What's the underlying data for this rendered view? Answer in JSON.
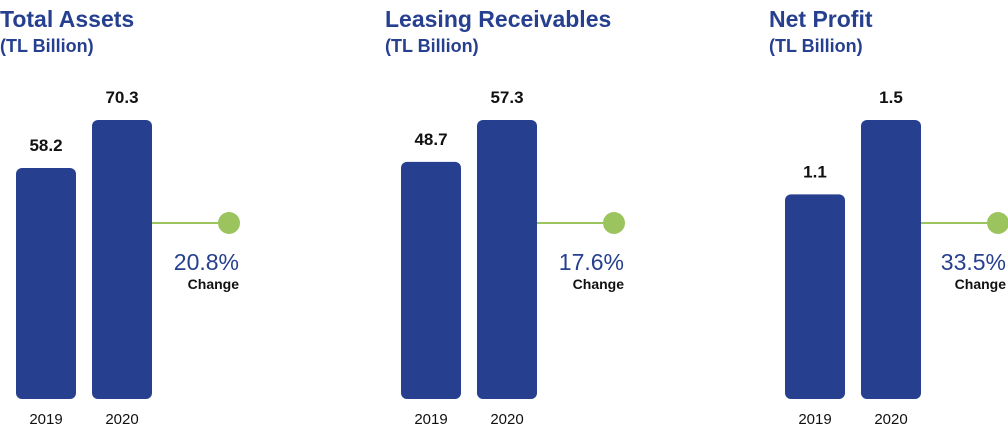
{
  "colors": {
    "bar": "#26408f",
    "title": "#26408f",
    "connector": "#9bc45f",
    "text": "#111111"
  },
  "chart_data": [
    {
      "type": "bar",
      "title": "Total Assets",
      "subtitle": "(TL Billion)",
      "categories": [
        "2019",
        "2020"
      ],
      "values": [
        58.2,
        70.3
      ],
      "value_labels": [
        "58.2",
        "70.3"
      ],
      "change": "20.8%",
      "change_label": "Change"
    },
    {
      "type": "bar",
      "title": "Leasing Receivables",
      "subtitle": "(TL Billion)",
      "categories": [
        "2019",
        "2020"
      ],
      "values": [
        48.7,
        57.3
      ],
      "value_labels": [
        "48.7",
        "57.3"
      ],
      "change": "17.6%",
      "change_label": "Change"
    },
    {
      "type": "bar",
      "title": "Net Profit",
      "subtitle": "(TL Billion)",
      "categories": [
        "2019",
        "2020"
      ],
      "values": [
        1.1,
        1.5
      ],
      "value_labels": [
        "1.1",
        "1.5"
      ],
      "change": "33.5%",
      "change_label": "Change"
    }
  ]
}
